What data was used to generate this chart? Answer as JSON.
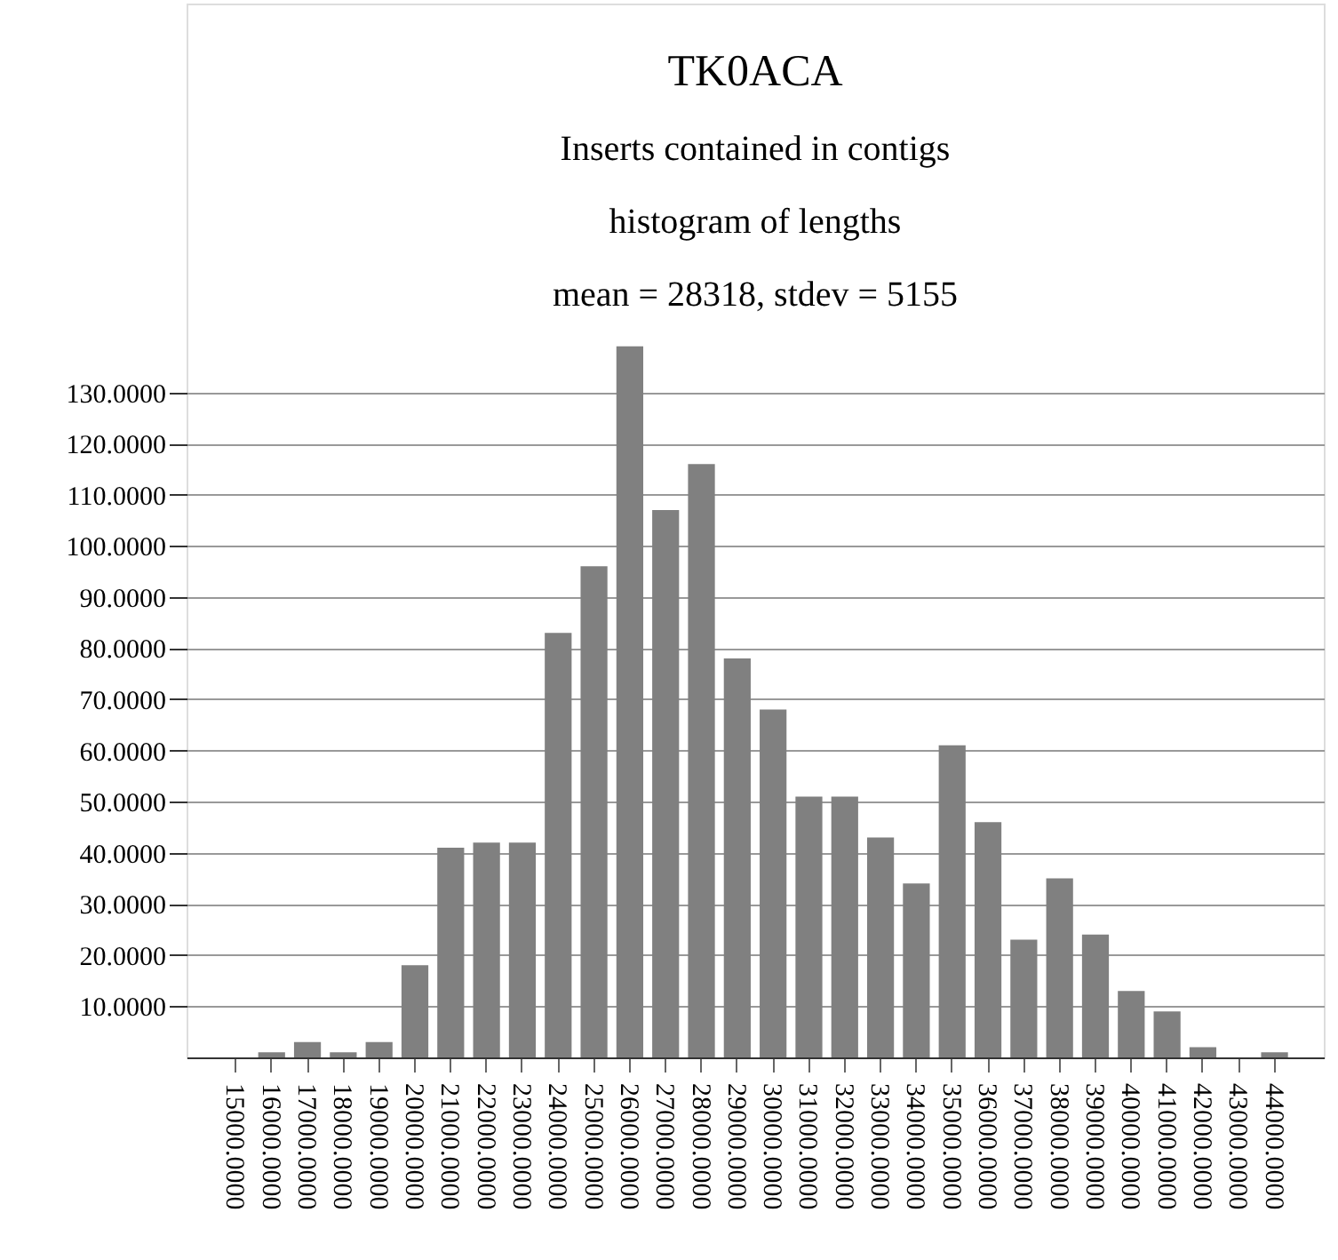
{
  "chart_data": {
    "type": "bar",
    "title": "TK0ACA",
    "subtitle": "Inserts contained in contigs",
    "annotations": [
      "histogram of lengths",
      "mean = 28318, stdev = 5155"
    ],
    "categories": [
      "15000.0000",
      "16000.0000",
      "17000.0000",
      "18000.0000",
      "19000.0000",
      "20000.0000",
      "21000.0000",
      "22000.0000",
      "23000.0000",
      "24000.0000",
      "25000.0000",
      "26000.0000",
      "27000.0000",
      "28000.0000",
      "29000.0000",
      "30000.0000",
      "31000.0000",
      "32000.0000",
      "33000.0000",
      "34000.0000",
      "35000.0000",
      "36000.0000",
      "37000.0000",
      "38000.0000",
      "39000.0000",
      "40000.0000",
      "41000.0000",
      "42000.0000",
      "43000.0000",
      "44000.0000"
    ],
    "values": [
      0,
      1,
      3,
      1,
      3,
      18,
      41,
      42,
      42,
      83,
      96,
      139,
      107,
      116,
      78,
      68,
      51,
      51,
      43,
      34,
      61,
      46,
      23,
      35,
      24,
      13,
      9,
      2,
      0,
      1
    ],
    "color": "#808080",
    "ylim": [
      0,
      206
    ],
    "yticks": [
      {
        "value": 10,
        "label": "10.0000"
      },
      {
        "value": 20,
        "label": "20.0000"
      },
      {
        "value": 30,
        "label": "30.0000"
      },
      {
        "value": 40,
        "label": "40.0000"
      },
      {
        "value": 50,
        "label": "50.0000"
      },
      {
        "value": 60,
        "label": "60.0000"
      },
      {
        "value": 70,
        "label": "70.0000"
      },
      {
        "value": 80,
        "label": "80.0000"
      },
      {
        "value": 90,
        "label": "90.0000"
      },
      {
        "value": 100,
        "label": "100.0000"
      },
      {
        "value": 110,
        "label": "110.0000"
      },
      {
        "value": 120,
        "label": "120.0000"
      },
      {
        "value": 130,
        "label": "130.0000"
      }
    ],
    "grid": "y"
  }
}
